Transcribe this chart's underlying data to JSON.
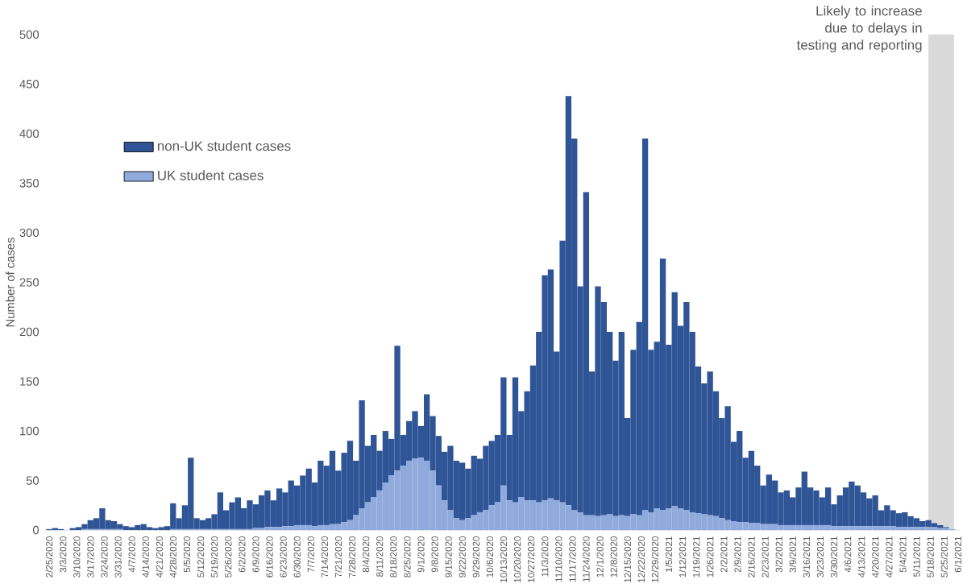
{
  "chart_data": {
    "type": "bar",
    "stacked": true,
    "ylabel": "Number of cases",
    "legend": "top left",
    "ylim": [
      0,
      500
    ],
    "yticks": [
      0,
      50,
      100,
      150,
      200,
      250,
      300,
      350,
      400,
      450,
      500
    ],
    "xlim": [
      "2020-02-23",
      "2021-06-02"
    ],
    "xticks": [
      {
        "value": "2020-02-25",
        "label": "2/25/2020"
      },
      {
        "value": "2020-03-03",
        "label": "3/3/2020"
      },
      {
        "value": "2020-03-10",
        "label": "3/10/2020"
      },
      {
        "value": "2020-03-17",
        "label": "3/17/2020"
      },
      {
        "value": "2020-03-24",
        "label": "3/24/2020"
      },
      {
        "value": "2020-03-31",
        "label": "3/31/2020"
      },
      {
        "value": "2020-04-07",
        "label": "4/7/2020"
      },
      {
        "value": "2020-04-14",
        "label": "4/14/2020"
      },
      {
        "value": "2020-04-21",
        "label": "4/21/2020"
      },
      {
        "value": "2020-04-28",
        "label": "4/28/2020"
      },
      {
        "value": "2020-05-05",
        "label": "5/5/2020"
      },
      {
        "value": "2020-05-12",
        "label": "5/12/2020"
      },
      {
        "value": "2020-05-19",
        "label": "5/19/2020"
      },
      {
        "value": "2020-05-26",
        "label": "5/26/2020"
      },
      {
        "value": "2020-06-02",
        "label": "6/2/2020"
      },
      {
        "value": "2020-06-09",
        "label": "6/9/2020"
      },
      {
        "value": "2020-06-16",
        "label": "6/16/2020"
      },
      {
        "value": "2020-06-23",
        "label": "6/23/2020"
      },
      {
        "value": "2020-06-30",
        "label": "6/30/2020"
      },
      {
        "value": "2020-07-07",
        "label": "7/7/2020"
      },
      {
        "value": "2020-07-14",
        "label": "7/14/2020"
      },
      {
        "value": "2020-07-21",
        "label": "7/21/2020"
      },
      {
        "value": "2020-07-28",
        "label": "7/28/2020"
      },
      {
        "value": "2020-08-04",
        "label": "8/4/2020"
      },
      {
        "value": "2020-08-11",
        "label": "8/11/2020"
      },
      {
        "value": "2020-08-18",
        "label": "8/18/2020"
      },
      {
        "value": "2020-08-25",
        "label": "8/25/2020"
      },
      {
        "value": "2020-09-01",
        "label": "9/1/2020"
      },
      {
        "value": "2020-09-08",
        "label": "9/8/2020"
      },
      {
        "value": "2020-09-15",
        "label": "9/15/2020"
      },
      {
        "value": "2020-09-22",
        "label": "9/22/2020"
      },
      {
        "value": "2020-09-29",
        "label": "9/29/2020"
      },
      {
        "value": "2020-10-06",
        "label": "10/6/2020"
      },
      {
        "value": "2020-10-13",
        "label": "10/13/2020"
      },
      {
        "value": "2020-10-20",
        "label": "10/20/2020"
      },
      {
        "value": "2020-10-27",
        "label": "10/27/2020"
      },
      {
        "value": "2020-11-03",
        "label": "11/3/2020"
      },
      {
        "value": "2020-11-10",
        "label": "11/10/2020"
      },
      {
        "value": "2020-11-17",
        "label": "11/17/2020"
      },
      {
        "value": "2020-11-24",
        "label": "11/24/2020"
      },
      {
        "value": "2020-12-01",
        "label": "12/1/2020"
      },
      {
        "value": "2020-12-08",
        "label": "12/8/2020"
      },
      {
        "value": "2020-12-15",
        "label": "12/15/2020"
      },
      {
        "value": "2020-12-22",
        "label": "12/22/2020"
      },
      {
        "value": "2020-12-29",
        "label": "12/29/2020"
      },
      {
        "value": "2021-01-05",
        "label": "1/5/2021"
      },
      {
        "value": "2021-01-12",
        "label": "1/12/2021"
      },
      {
        "value": "2021-01-19",
        "label": "1/19/2021"
      },
      {
        "value": "2021-01-26",
        "label": "1/26/2021"
      },
      {
        "value": "2021-02-02",
        "label": "2/2/2021"
      },
      {
        "value": "2021-02-09",
        "label": "2/9/2021"
      },
      {
        "value": "2021-02-16",
        "label": "2/16/2021"
      },
      {
        "value": "2021-02-23",
        "label": "2/23/2021"
      },
      {
        "value": "2021-03-02",
        "label": "3/2/2021"
      },
      {
        "value": "2021-03-09",
        "label": "3/9/2021"
      },
      {
        "value": "2021-03-16",
        "label": "3/16/2021"
      },
      {
        "value": "2021-03-23",
        "label": "3/23/2021"
      },
      {
        "value": "2021-03-30",
        "label": "3/30/2021"
      },
      {
        "value": "2021-04-06",
        "label": "4/6/2021"
      },
      {
        "value": "2021-04-13",
        "label": "4/13/2021"
      },
      {
        "value": "2021-04-20",
        "label": "4/20/2021"
      },
      {
        "value": "2021-04-27",
        "label": "4/27/2021"
      },
      {
        "value": "2021-05-04",
        "label": "5/4/2021"
      },
      {
        "value": "2021-05-11",
        "label": "5/11/2021"
      },
      {
        "value": "2021-05-18",
        "label": "5/18/2021"
      },
      {
        "value": "2021-05-25",
        "label": "5/25/2021"
      },
      {
        "value": "2021-06-01",
        "label": "6/1/2021"
      }
    ],
    "bands": [
      {
        "axis": "x",
        "from": "2021-05-17",
        "to": "2021-05-30",
        "label": "Likely to increase due to delays in testing and reporting",
        "color": "#d9d9d9"
      }
    ],
    "x": [
      "2020-02-25",
      "2020-02-28",
      "2020-03-02",
      "2020-03-05",
      "2020-03-08",
      "2020-03-11",
      "2020-03-14",
      "2020-03-17",
      "2020-03-20",
      "2020-03-23",
      "2020-03-26",
      "2020-03-29",
      "2020-04-01",
      "2020-04-04",
      "2020-04-07",
      "2020-04-10",
      "2020-04-13",
      "2020-04-16",
      "2020-04-19",
      "2020-04-22",
      "2020-04-25",
      "2020-04-28",
      "2020-05-01",
      "2020-05-04",
      "2020-05-07",
      "2020-05-10",
      "2020-05-13",
      "2020-05-16",
      "2020-05-19",
      "2020-05-22",
      "2020-05-25",
      "2020-05-28",
      "2020-05-31",
      "2020-06-03",
      "2020-06-06",
      "2020-06-09",
      "2020-06-12",
      "2020-06-15",
      "2020-06-18",
      "2020-06-21",
      "2020-06-24",
      "2020-06-27",
      "2020-06-30",
      "2020-07-03",
      "2020-07-06",
      "2020-07-09",
      "2020-07-12",
      "2020-07-15",
      "2020-07-18",
      "2020-07-21",
      "2020-07-24",
      "2020-07-27",
      "2020-07-30",
      "2020-08-02",
      "2020-08-05",
      "2020-08-08",
      "2020-08-11",
      "2020-08-14",
      "2020-08-17",
      "2020-08-20",
      "2020-08-23",
      "2020-08-26",
      "2020-08-29",
      "2020-09-01",
      "2020-09-04",
      "2020-09-07",
      "2020-09-10",
      "2020-09-13",
      "2020-09-16",
      "2020-09-19",
      "2020-09-22",
      "2020-09-25",
      "2020-09-28",
      "2020-10-01",
      "2020-10-04",
      "2020-10-07",
      "2020-10-10",
      "2020-10-13",
      "2020-10-16",
      "2020-10-19",
      "2020-10-22",
      "2020-10-25",
      "2020-10-28",
      "2020-10-31",
      "2020-11-03",
      "2020-11-06",
      "2020-11-09",
      "2020-11-12",
      "2020-11-15",
      "2020-11-18",
      "2020-11-21",
      "2020-11-24",
      "2020-11-27",
      "2020-11-30",
      "2020-12-03",
      "2020-12-06",
      "2020-12-09",
      "2020-12-12",
      "2020-12-15",
      "2020-12-18",
      "2020-12-21",
      "2020-12-24",
      "2020-12-27",
      "2020-12-30",
      "2021-01-02",
      "2021-01-05",
      "2021-01-08",
      "2021-01-11",
      "2021-01-14",
      "2021-01-17",
      "2021-01-20",
      "2021-01-23",
      "2021-01-26",
      "2021-01-29",
      "2021-02-01",
      "2021-02-04",
      "2021-02-07",
      "2021-02-10",
      "2021-02-13",
      "2021-02-16",
      "2021-02-19",
      "2021-02-22",
      "2021-02-25",
      "2021-02-28",
      "2021-03-03",
      "2021-03-06",
      "2021-03-09",
      "2021-03-12",
      "2021-03-15",
      "2021-03-18",
      "2021-03-21",
      "2021-03-24",
      "2021-03-27",
      "2021-03-30",
      "2021-04-02",
      "2021-04-05",
      "2021-04-08",
      "2021-04-11",
      "2021-04-14",
      "2021-04-17",
      "2021-04-20",
      "2021-04-23",
      "2021-04-26",
      "2021-04-29",
      "2021-05-02",
      "2021-05-05",
      "2021-05-08",
      "2021-05-11",
      "2021-05-14",
      "2021-05-17",
      "2021-05-20",
      "2021-05-23",
      "2021-05-26",
      "2021-05-29"
    ],
    "series": [
      {
        "name": "UK student cases",
        "color": "#8faadc",
        "values": [
          0,
          0,
          0,
          0,
          0,
          0,
          1,
          1,
          1,
          1,
          1,
          1,
          1,
          0,
          0,
          0,
          0,
          0,
          0,
          0,
          0,
          1,
          1,
          1,
          1,
          1,
          1,
          1,
          1,
          1,
          1,
          1,
          1,
          1,
          1,
          2,
          2,
          3,
          3,
          3,
          4,
          4,
          5,
          5,
          5,
          4,
          5,
          5,
          6,
          6,
          8,
          10,
          15,
          22,
          28,
          33,
          40,
          48,
          55,
          60,
          65,
          70,
          72,
          73,
          70,
          60,
          45,
          30,
          20,
          12,
          10,
          12,
          15,
          18,
          20,
          25,
          28,
          45,
          30,
          28,
          33,
          30,
          30,
          28,
          30,
          32,
          30,
          28,
          25,
          20,
          18,
          15,
          15,
          14,
          15,
          16,
          14,
          15,
          14,
          16,
          15,
          20,
          18,
          22,
          20,
          22,
          24,
          22,
          20,
          18,
          17,
          16,
          15,
          14,
          12,
          10,
          9,
          8,
          8,
          7,
          7,
          6,
          6,
          6,
          5,
          5,
          5,
          5,
          5,
          5,
          5,
          5,
          5,
          4,
          4,
          4,
          4,
          4,
          4,
          4,
          4,
          4,
          4,
          4,
          3,
          3,
          3,
          3,
          3,
          3,
          3,
          2,
          2,
          1
        ]
      },
      {
        "name": "non-UK student cases",
        "color": "#2f5597",
        "values": [
          1,
          2,
          1,
          0,
          2,
          3,
          5,
          9,
          11,
          21,
          9,
          8,
          5,
          4,
          3,
          5,
          6,
          3,
          2,
          3,
          4,
          26,
          11,
          24,
          72,
          11,
          9,
          11,
          15,
          37,
          19,
          27,
          32,
          21,
          29,
          24,
          33,
          37,
          27,
          39,
          34,
          46,
          40,
          50,
          57,
          44,
          65,
          60,
          74,
          54,
          70,
          80,
          55,
          109,
          57,
          63,
          40,
          52,
          37,
          126,
          31,
          40,
          48,
          32,
          67,
          55,
          50,
          49,
          65,
          58,
          58,
          50,
          60,
          54,
          65,
          65,
          68,
          109,
          66,
          126,
          87,
          110,
          136,
          172,
          227,
          231,
          150,
          264,
          413,
          375,
          228,
          326,
          145,
          232,
          215,
          184,
          157,
          185,
          99,
          166,
          195,
          375,
          164,
          168,
          254,
          165,
          216,
          184,
          210,
          182,
          148,
          132,
          145,
          126,
          101,
          115,
          80,
          92,
          65,
          73,
          58,
          39,
          50,
          44,
          33,
          35,
          28,
          38,
          54,
          38,
          35,
          28,
          38,
          22,
          31,
          39,
          45,
          41,
          34,
          28,
          31,
          16,
          21,
          16,
          14,
          15,
          11,
          9,
          6,
          7,
          4,
          3,
          1,
          0
        ]
      }
    ]
  }
}
